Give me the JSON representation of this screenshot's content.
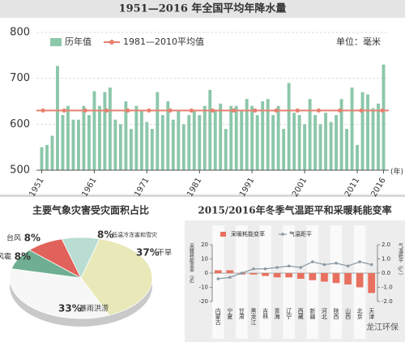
{
  "chart_data": [
    {
      "type": "bar",
      "title": "1951—2016 年全国平均年降水量",
      "x": [
        1951,
        1952,
        1953,
        1954,
        1955,
        1956,
        1957,
        1958,
        1959,
        1960,
        1961,
        1962,
        1963,
        1964,
        1965,
        1966,
        1967,
        1968,
        1969,
        1970,
        1971,
        1972,
        1973,
        1974,
        1975,
        1976,
        1977,
        1978,
        1979,
        1980,
        1981,
        1982,
        1983,
        1984,
        1985,
        1986,
        1987,
        1988,
        1989,
        1990,
        1991,
        1992,
        1993,
        1994,
        1995,
        1996,
        1997,
        1998,
        1999,
        2000,
        2001,
        2002,
        2003,
        2004,
        2005,
        2006,
        2007,
        2008,
        2009,
        2010,
        2011,
        2012,
        2013,
        2014,
        2015,
        2016
      ],
      "series": [
        {
          "name": "历年值",
          "color": "#8cc7aa",
          "values": [
            550,
            555,
            575,
            727,
            620,
            640,
            610,
            610,
            640,
            620,
            672,
            640,
            670,
            680,
            610,
            600,
            650,
            590,
            640,
            630,
            605,
            590,
            670,
            620,
            650,
            610,
            630,
            600,
            620,
            630,
            620,
            640,
            675,
            630,
            645,
            590,
            640,
            640,
            630,
            655,
            640,
            620,
            650,
            655,
            620,
            640,
            590,
            690,
            625,
            620,
            600,
            655,
            620,
            600,
            625,
            605,
            620,
            655,
            590,
            680,
            555,
            670,
            665,
            635,
            645,
            730
          ]
        }
      ],
      "reference_line": {
        "name": "1981—2010平均值",
        "value": 630,
        "color": "#e8806f"
      },
      "unit_label": "单位：毫米",
      "x_label": "(年)",
      "xlim": [
        1950,
        2017
      ],
      "xticks": [
        1951,
        1961,
        1971,
        1981,
        1991,
        2001,
        2011,
        2016
      ],
      "ylim": [
        500,
        800
      ],
      "yticks": [
        500,
        600,
        700,
        800
      ],
      "grid": true
    },
    {
      "type": "pie",
      "title": "主要气象灾害受灾面积占比",
      "categories": [
        "干旱",
        "暴雨洪涝",
        "风雹",
        "台风",
        "低温冷冻害和雪灾"
      ],
      "values": [
        37,
        33,
        8,
        8,
        8
      ],
      "value_labels": [
        "37%",
        "33%",
        "8%",
        "8%",
        "8%"
      ],
      "colors": [
        "#e9e8b8",
        "#f7f7f7",
        "#6fae92",
        "#e0625a",
        "#b9dcd3"
      ]
    },
    {
      "type": "combo",
      "title": "2015/2016年冬季气温距平和采暖耗能变率",
      "categories": [
        "内蒙古",
        "宁夏",
        "甘肃",
        "黑龙江",
        "吉林",
        "青海",
        "辽宁",
        "西藏",
        "新疆",
        "河北",
        "陕西",
        "山西",
        "北京",
        "天津"
      ],
      "series": [
        {
          "name": "采暖耗能变率",
          "color": "#e8705f",
          "values": [
            2,
            2,
            -1,
            -1,
            -2,
            -3,
            -3,
            -4,
            -5,
            -6,
            -7,
            -8,
            -10,
            -14
          ]
        },
        {
          "name": "气温距平",
          "color": "#8a9aa5",
          "axis": "y2",
          "values": [
            -0.4,
            -0.3,
            0.0,
            0.3,
            0.3,
            0.4,
            0.5,
            0.4,
            0.8,
            0.6,
            0.7,
            0.5,
            0.8,
            0.6
          ]
        }
      ],
      "y_label": "采暖耗能变率（%）",
      "y2_label": "气温距平（℃）",
      "ylim": [
        -20,
        20
      ],
      "yticks": [
        20,
        10,
        0,
        -10,
        -20
      ],
      "y2lim": [
        -2,
        2
      ],
      "y2ticks": [
        {
          "value": 2,
          "label": "2.0"
        },
        {
          "value": 1,
          "label": "1.0"
        },
        {
          "value": 0,
          "label": "0.0"
        },
        {
          "value": -1,
          "label": "-1.0"
        },
        {
          "value": -2,
          "label": "-2.0"
        }
      ]
    }
  ],
  "watermark": "龙江环保"
}
